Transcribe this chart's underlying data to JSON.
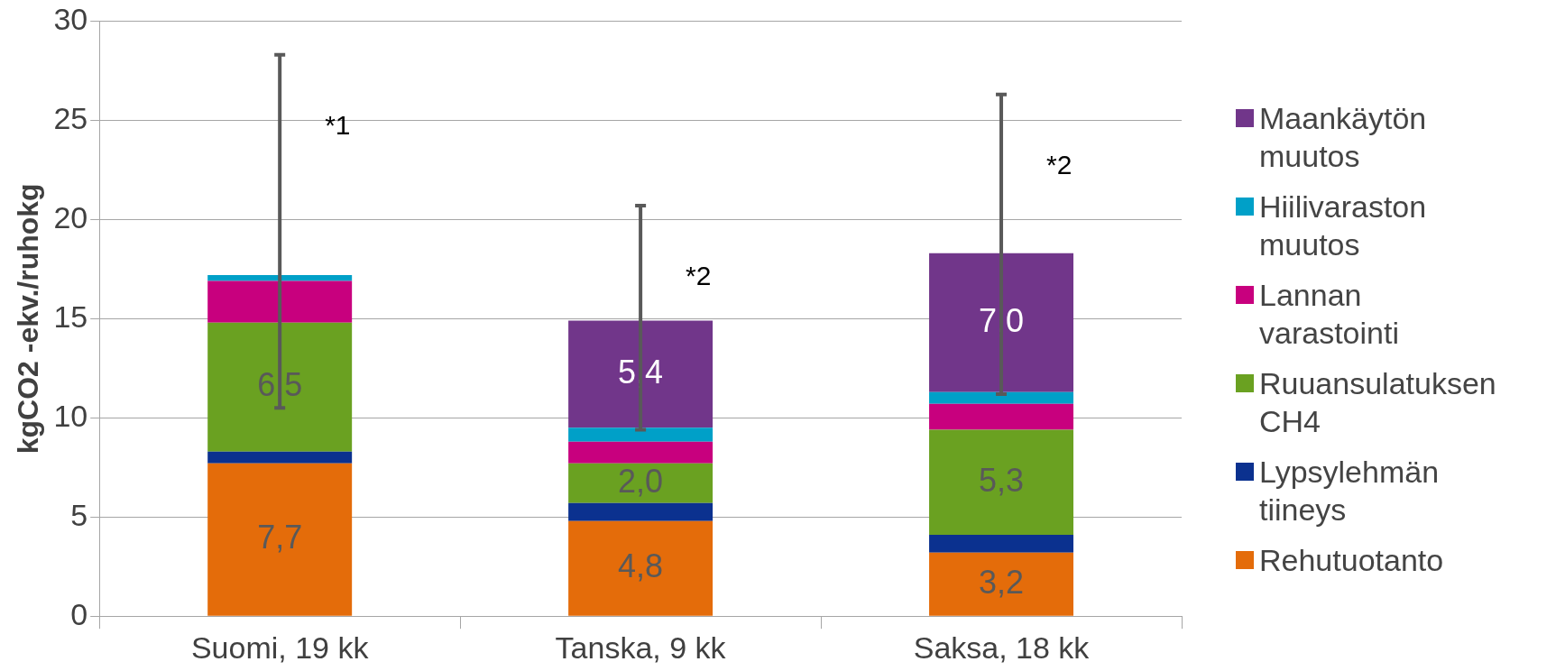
{
  "chart_data": {
    "type": "bar",
    "stacked": true,
    "ylabel": "kgCO2 -ekv./ruhokg",
    "categories": [
      "Suomi, 19 kk",
      "Tanska, 9 kk",
      "Saksa, 18 kk"
    ],
    "series": [
      {
        "name": "Rehutuotanto",
        "color": "#e46c0a",
        "values": [
          7.7,
          4.8,
          3.2
        ],
        "value_labels": [
          "7,7",
          "4,8",
          "3,2"
        ]
      },
      {
        "name": "Lypsylehmän tiineys",
        "color": "#0b318f",
        "values": [
          0.6,
          0.9,
          0.9
        ]
      },
      {
        "name": "Ruuansulatuksen CH4",
        "color": "#6aa121",
        "values": [
          6.5,
          2.0,
          5.3
        ],
        "value_labels": [
          "6,5",
          "2,0",
          "5,3"
        ]
      },
      {
        "name": "Lannan varastointi",
        "color": "#c8007e",
        "values": [
          2.1,
          1.1,
          1.3
        ]
      },
      {
        "name": "Hiilivaraston muutos",
        "color": "#00a0c8",
        "values": [
          0.3,
          0.7,
          0.6
        ]
      },
      {
        "name": "Maankäytön muutos",
        "color": "#71368a",
        "values": [
          0,
          5.4,
          7.0
        ],
        "value_labels": [
          null,
          "5,4",
          "7,0"
        ],
        "errors": [
          [
            10.5,
            28.3
          ],
          [
            9.4,
            20.7
          ],
          [
            11.2,
            26.3
          ]
        ]
      }
    ],
    "annotations": [
      "*1",
      "*2",
      "*2"
    ],
    "ylim": [
      0,
      30
    ],
    "yticks": [
      0,
      5,
      10,
      15,
      20,
      25,
      30
    ],
    "grid": "y",
    "legend": "right"
  }
}
